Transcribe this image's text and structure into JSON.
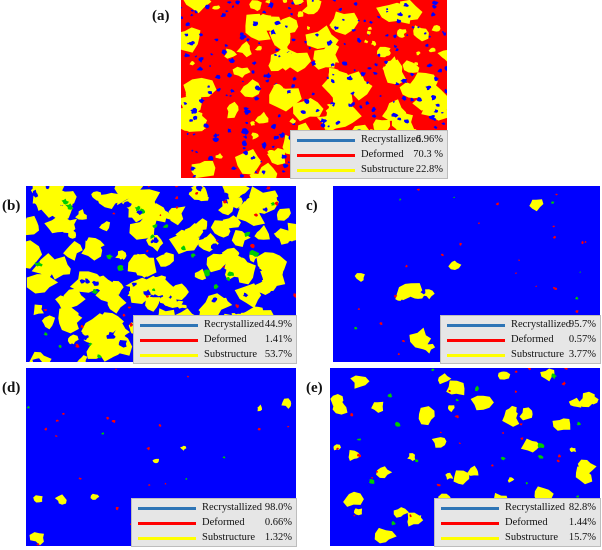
{
  "colors": {
    "recrystallized_map": "#0000ff",
    "deformed_map": "#ff0000",
    "substructure_map": "#ffff00",
    "recrystallized_line": "#2e75b6",
    "deformed_line": "#ff0000",
    "substructure_line": "#ffff00",
    "minor_phase": "#00cc00",
    "legend_bg": "#e6e6e6"
  },
  "panels": [
    {
      "id": "a",
      "label": "(a)",
      "base": "deformed",
      "legend": [
        {
          "name": "Recrystallized",
          "value": "6.96%"
        },
        {
          "name": "Deformed",
          "value": "70.3 %"
        },
        {
          "name": "Substructure",
          "value": "22.8%"
        }
      ]
    },
    {
      "id": "b",
      "label": "(b)",
      "base": "recrystallized",
      "legend": [
        {
          "name": "Recrystallized",
          "value": "44.9%"
        },
        {
          "name": "Deformed",
          "value": "1.41%"
        },
        {
          "name": "Substructure",
          "value": "53.7%"
        }
      ]
    },
    {
      "id": "c",
      "label": "c)",
      "base": "recrystallized",
      "legend": [
        {
          "name": "Recrystallized",
          "value": "95.7%"
        },
        {
          "name": "Deformed",
          "value": "0.57%"
        },
        {
          "name": "Substructure",
          "value": "3.77%"
        }
      ]
    },
    {
      "id": "d",
      "label": "(d)",
      "base": "recrystallized",
      "legend": [
        {
          "name": "Recrystallized",
          "value": "98.0%"
        },
        {
          "name": "Deformed",
          "value": "0.66%"
        },
        {
          "name": "Substructure",
          "value": "1.32%"
        }
      ]
    },
    {
      "id": "e",
      "label": "(e)",
      "base": "recrystallized",
      "legend": [
        {
          "name": "Recrystallized",
          "value": "82.8%"
        },
        {
          "name": "Deformed",
          "value": "1.44%"
        },
        {
          "name": "Substructure",
          "value": "15.7%"
        }
      ]
    }
  ]
}
